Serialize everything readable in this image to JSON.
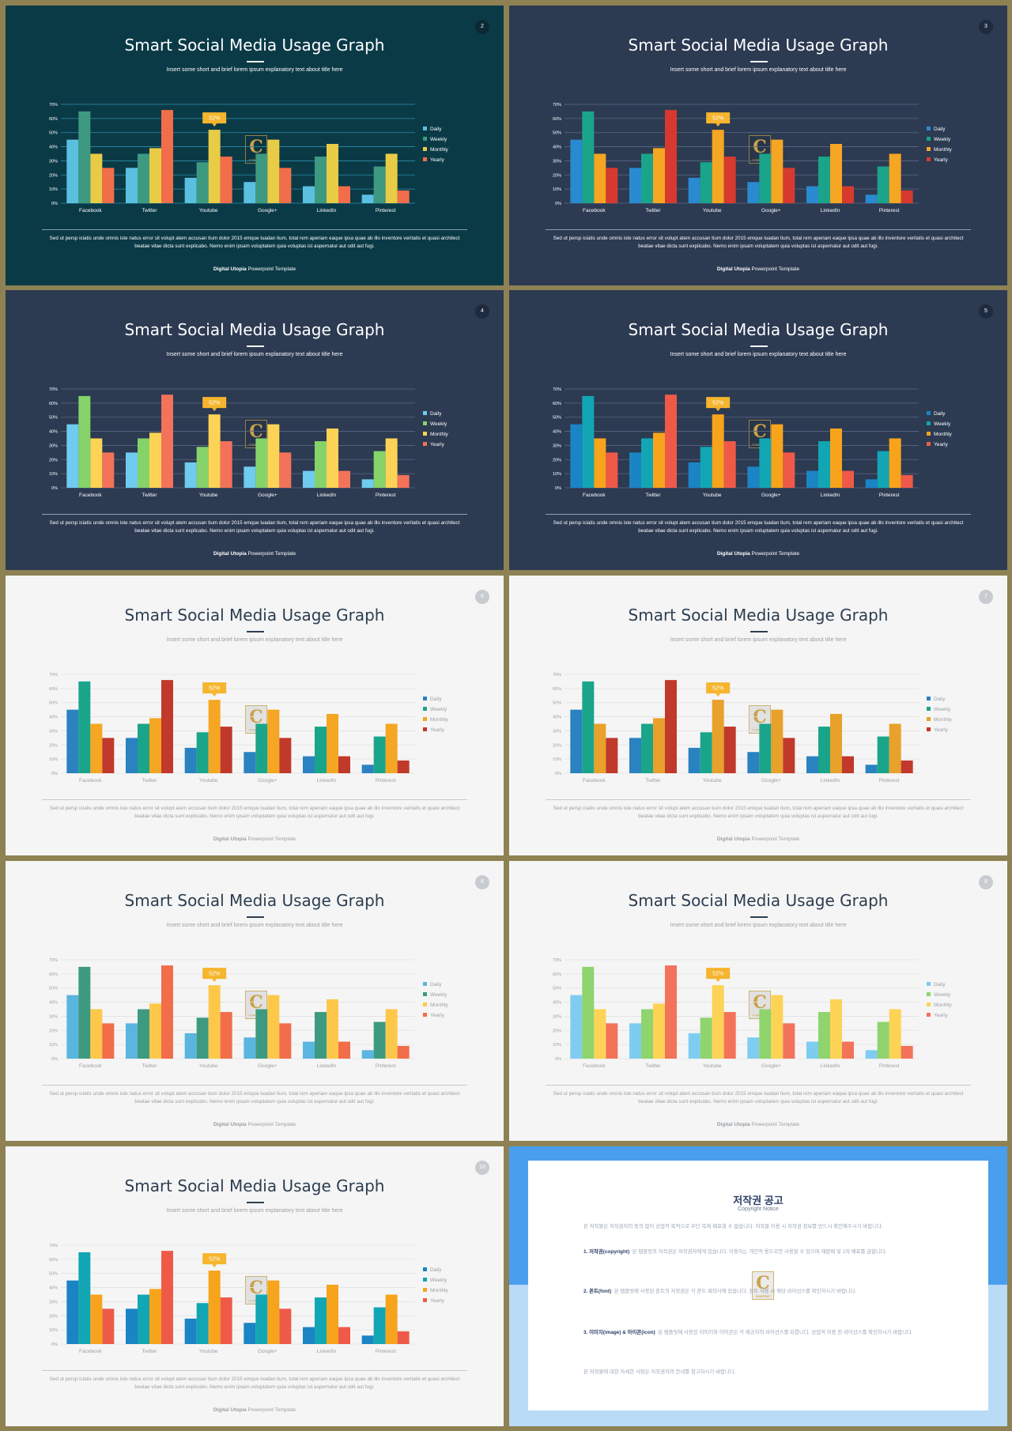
{
  "slides": [
    {
      "page": "2",
      "theme": "teal",
      "title": "Smart Social Media Usage Graph",
      "subtitle": "Insert some short and brief lorem ipsum explanatory text about title here",
      "body": "Sed ut persp iciatis unde omnis iste natus error sit volupt atem accusan tium dolor 2015 emque luadan tium, total rem aperiam eaque ipsa quae ab illo inventore veritatis et quasi architect beatae vitae dicta sunt explicabo. Nemo enim ipsam voluptatem quia voluptas ist aspernatur aut odit aut fugi.",
      "footer_bold": "Digital Utopia",
      "footer_rest": " Powerpoint Template"
    },
    {
      "page": "3",
      "theme": "navyA",
      "title": "Smart Social Media Usage Graph",
      "subtitle": "Insert some short and brief lorem ipsum explanatory text about title here",
      "body": "Sed ut persp iciatis unde omnis iste natus error sit volupt atem accusan tium dolor 2015 emque luadan tium, total rem aperiam eaque ipsa quae ab illo inventore veritatis et quasi architect beatae vitae dicta sunt explicabo. Nemo enim ipsam voluptatem quia voluptas ist aspernatur aut odit aut fugi.",
      "footer_bold": "Digital Utopia",
      "footer_rest": " Powerpoint Template"
    },
    {
      "page": "4",
      "theme": "navyB",
      "title": "Smart Social Media Usage Graph",
      "subtitle": "Insert some short and brief lorem ipsum explanatory text about title here",
      "body": "Sed ut persp iciatis unde omnis iste natus error sit volupt atem accusan tium dolor 2015 emque luadan tium, total rem aperiam eaque ipsa quae ab illo inventore veritatis et quasi architect beatae vitae dicta sunt explicabo. Nemo enim ipsam voluptatem quia voluptas ist aspernatur aut odit aut fugi.",
      "footer_bold": "Digital Utopia",
      "footer_rest": " Powerpoint Template"
    },
    {
      "page": "5",
      "theme": "navyC",
      "title": "Smart Social Media Usage Graph",
      "subtitle": "Insert some short and brief lorem ipsum explanatory text about title here",
      "body": "Sed ut persp iciatis unde omnis iste natus error sit volupt atem accusan tium dolor 2015 emque luadan tium, total rem aperiam eaque ipsa quae ab illo inventore veritatis et quasi architect beatae vitae dicta sunt explicabo. Nemo enim ipsam voluptatem quia voluptas ist aspernatur aut odit aut fugi.",
      "footer_bold": "Digital Utopia",
      "footer_rest": " Powerpoint Template"
    },
    {
      "page": "6",
      "theme": "lightA",
      "title": "Smart Social Media Usage Graph",
      "subtitle": "Insert some short and brief lorem ipsum explanatory text about title here",
      "body": "Sed ut persp iciatis unde omnis iste natus error sit volupt atem accusan tium dolor 2015 emque luadan tium, total rem aperiam eaque ipsa quae ab illo inventore veritatis et quasi architect beatae vitae dicta sunt explicabo. Nemo enim ipsam voluptatem quia voluptas ist aspernatur aut odit aut fugi.",
      "footer_bold": "Digital Utopia",
      "footer_rest": " Powerpoint Template"
    },
    {
      "page": "7",
      "theme": "lightB",
      "title": "Smart Social Media Usage Graph",
      "subtitle": "Insert some short and brief lorem ipsum explanatory text about title here",
      "body": "Sed ut persp iciatis unde omnis iste natus error sit volupt atem accusan tium dolor 2015 emque luadan tium, total rem aperiam eaque ipsa quae ab illo inventore veritatis et quasi architect beatae vitae dicta sunt explicabo. Nemo enim ipsam voluptatem quia voluptas ist aspernatur aut odit aut fugi.",
      "footer_bold": "Digital Utopia",
      "footer_rest": " Powerpoint Template"
    },
    {
      "page": "8",
      "theme": "lightC",
      "title": "Smart Social Media Usage Graph",
      "subtitle": "Insert some short and brief lorem ipsum explanatory text about title here",
      "body": "Sed ut persp iciatis unde omnis iste natus error sit volupt atem accusan tium dolor 2015 emque luadan tium, total rem aperiam eaque ipsa quae ab illo inventore veritatis et quasi architect beatae vitae dicta sunt explicabo. Nemo enim ipsam voluptatem quia voluptas ist aspernatur aut odit aut fugi.",
      "footer_bold": "Digital Utopia",
      "footer_rest": " Powerpoint Template"
    },
    {
      "page": "9",
      "theme": "lightD",
      "title": "Smart Social Media Usage Graph",
      "subtitle": "Insert some short and brief lorem ipsum explanatory text about title here",
      "body": "Sed ut persp iciatis unde omnis iste natus error sit volupt atem accusan tium dolor 2015 emque luadan tium, total rem aperiam eaque ipsa quae ab illo inventore veritatis et quasi architect beatae vitae dicta sunt explicabo. Nemo enim ipsam voluptatem quia voluptas ist aspernatur aut odit aut fugi.",
      "footer_bold": "Digital Utopia",
      "footer_rest": " Powerpoint Template"
    },
    {
      "page": "10",
      "theme": "lightE",
      "title": "Smart Social Media Usage Graph",
      "subtitle": "Insert some short and brief lorem ipsum explanatory text about title here",
      "body": "Sed ut persp iciatis unde omnis iste natus error sit volupt atem accusan tium dolor 2015 emque luadan tium, total rem aperiam eaque ipsa quae ab illo inventore veritatis et quasi architect beatae vitae dicta sunt explicabo. Nemo enim ipsam voluptatem quia voluptas ist aspernatur aut odit aut fugi.",
      "footer_bold": "Digital Utopia",
      "footer_rest": " Powerpoint Template"
    }
  ],
  "themes": {
    "teal": {
      "bg": "#0b3a47",
      "title": "#ffffff",
      "text": "#ffffff",
      "grid": "#2a8fa8",
      "axis": "#ffffff",
      "num_bg": "#0a2a33",
      "num_fg": "#ffffff",
      "colors": [
        "#5bc0e0",
        "#3d9a80",
        "#e8cc45",
        "#f26d4a"
      ]
    },
    "navyA": {
      "bg": "#2c3a52",
      "title": "#ffffff",
      "text": "#ffffff",
      "grid": "#5a6a82",
      "axis": "#ffffff",
      "num_bg": "#1e2a3e",
      "num_fg": "#ffffff",
      "colors": [
        "#2a8ad0",
        "#1aa58a",
        "#f5a623",
        "#d63a2e"
      ]
    },
    "navyB": {
      "bg": "#2c3a52",
      "title": "#ffffff",
      "text": "#ffffff",
      "grid": "#5a6a82",
      "axis": "#ffffff",
      "num_bg": "#1e2a3e",
      "num_fg": "#ffffff",
      "colors": [
        "#6fcbef",
        "#86d36a",
        "#fdd355",
        "#f3725a"
      ]
    },
    "navyC": {
      "bg": "#2c3a52",
      "title": "#ffffff",
      "text": "#ffffff",
      "grid": "#5a6a82",
      "axis": "#ffffff",
      "num_bg": "#1e2a3e",
      "num_fg": "#ffffff",
      "colors": [
        "#1b84c4",
        "#12a6b4",
        "#f7a41c",
        "#ef5a48"
      ]
    },
    "lightA": {
      "bg": "#f5f5f5",
      "title": "#2c3e50",
      "text": "#9aa0a6",
      "grid": "#e2e2e2",
      "axis": "#9aa0a6",
      "num_bg": "#c8ccd0",
      "num_fg": "#ffffff",
      "colors": [
        "#2a82c0",
        "#1aa58a",
        "#f5a623",
        "#c0392b"
      ]
    },
    "lightB": {
      "bg": "#f5f5f5",
      "title": "#2c3e50",
      "text": "#9aa0a6",
      "grid": "#e2e2e2",
      "axis": "#9aa0a6",
      "num_bg": "#c8ccd0",
      "num_fg": "#ffffff",
      "colors": [
        "#2a82c0",
        "#1aa58a",
        "#e8a12a",
        "#c0392b"
      ]
    },
    "lightC": {
      "bg": "#f5f5f5",
      "title": "#2c3e50",
      "text": "#9aa0a6",
      "grid": "#e2e2e2",
      "axis": "#9aa0a6",
      "num_bg": "#c8ccd0",
      "num_fg": "#ffffff",
      "colors": [
        "#5ab6e0",
        "#3d9a80",
        "#fdc84a",
        "#f26d4a"
      ]
    },
    "lightD": {
      "bg": "#f5f5f5",
      "title": "#2c3e50",
      "text": "#9aa0a6",
      "grid": "#e2e2e2",
      "axis": "#9aa0a6",
      "num_bg": "#c8ccd0",
      "num_fg": "#ffffff",
      "colors": [
        "#7ecdf0",
        "#8fd46d",
        "#fdd355",
        "#f3725a"
      ]
    },
    "lightE": {
      "bg": "#f5f5f5",
      "title": "#2c3e50",
      "text": "#9aa0a6",
      "grid": "#e2e2e2",
      "axis": "#9aa0a6",
      "num_bg": "#c8ccd0",
      "num_fg": "#ffffff",
      "colors": [
        "#1b84c4",
        "#12a6b4",
        "#f7a41c",
        "#ef5a48"
      ]
    }
  },
  "chart_data": {
    "type": "bar",
    "categories": [
      "Facebook",
      "Twitter",
      "Youtube",
      "Google+",
      "LinkedIn",
      "Pinterest"
    ],
    "series": [
      {
        "name": "Daily",
        "values": [
          45,
          25,
          18,
          15,
          12,
          6
        ]
      },
      {
        "name": "Weekly",
        "values": [
          65,
          35,
          29,
          35,
          33,
          26
        ]
      },
      {
        "name": "Monthly",
        "values": [
          35,
          39,
          52,
          45,
          42,
          35
        ]
      },
      {
        "name": "Yearly",
        "values": [
          25,
          66,
          33,
          25,
          12,
          9
        ]
      }
    ],
    "yticks": [
      "0%",
      "10%",
      "20%",
      "30%",
      "40%",
      "50%",
      "60%",
      "70%"
    ],
    "ylim": [
      0,
      70
    ],
    "callout": "52%",
    "callout_color": "#f5b52e",
    "legend_position": "right"
  },
  "notice": {
    "title": "저작권 공고",
    "subtitle": "Copyright Notice",
    "intro": "본 저작물은 저작권자의 동의 없이 상업적 목적으로 무단 복제·배포할 수 없습니다. 저작물 이용 시 저작권 정보를 반드시 확인해주시기 바랍니다.",
    "p1_head": "1. 저작권(copyright)",
    "p1": ": 본 템플릿의 저작권은 저작권자에게 있습니다. 이용자는 개인적 용도로만 사용할 수 있으며 재판매 및 2차 배포를 금합니다.",
    "p2_head": "2. 폰트(font)",
    "p2": ": 본 템플릿에 사용된 폰트의 저작권은 각 폰트 제작사에 있습니다. 폰트 사용 시 해당 라이선스를 확인하시기 바랍니다.",
    "p3_head": "3. 이미지(image) & 아이콘(icon)",
    "p3": ": 본 템플릿에 사용된 이미지와 아이콘은 각 제공처의 라이선스를 따릅니다. 상업적 이용 전 라이선스를 확인하시기 바랍니다.",
    "outro": "본 저작물에 대한 자세한 사항은 저작권자의 안내를 참고하시기 바랍니다."
  }
}
